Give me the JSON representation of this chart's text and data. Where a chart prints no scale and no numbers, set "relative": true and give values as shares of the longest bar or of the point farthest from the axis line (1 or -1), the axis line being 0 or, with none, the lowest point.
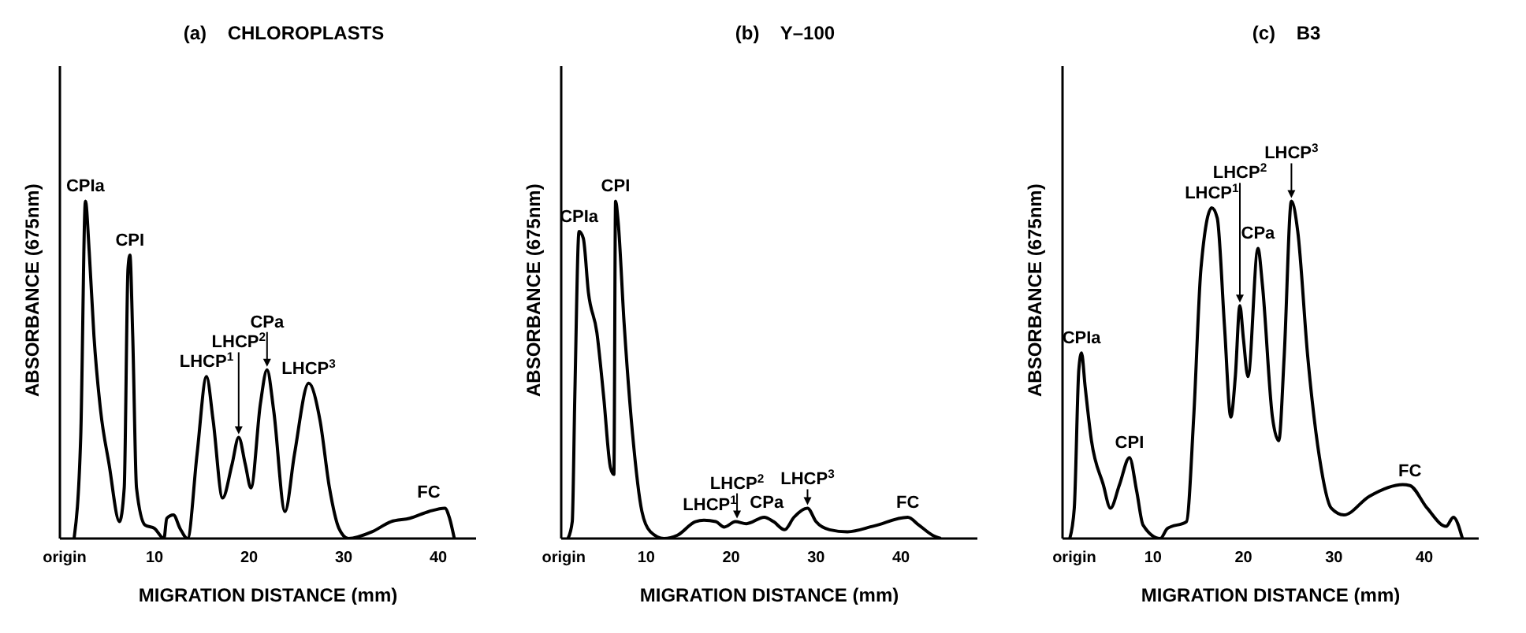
{
  "chart_data": [
    {
      "type": "line",
      "title": "(a)    CHLOROPLASTS",
      "xlabel": "MIGRATION DISTANCE (mm)",
      "ylabel": "ABSORBANCE (675nm)",
      "relative": true,
      "marker": "none",
      "tick_labels": "x",
      "xlim": [
        0,
        44
      ],
      "xticks": [
        {
          "value": 0.5,
          "label": "origin"
        },
        10,
        20,
        30,
        40
      ],
      "series": [
        {
          "color": "#000000",
          "x": [
            1.5,
            2.2,
            2.7,
            3.1,
            3.6,
            4.3,
            5.2,
            6.3,
            6.8,
            7.2,
            7.4,
            7.7,
            8.1,
            9,
            10,
            11,
            11.3,
            12,
            12.7,
            13.5,
            14.5,
            15.5,
            16.2,
            17.2,
            18.2,
            18.9,
            19.6,
            20.2,
            21.2,
            21.9,
            22.6,
            23.8,
            24.8,
            26.3,
            27.5,
            28.5,
            29.5,
            30.5,
            33,
            35,
            37,
            39,
            40.7,
            41.2,
            41.7
          ],
          "values": [
            0,
            0.3,
            1.0,
            0.85,
            0.6,
            0.38,
            0.22,
            0.05,
            0.15,
            0.8,
            0.84,
            0.6,
            0.15,
            0.04,
            0.03,
            0,
            0.06,
            0.07,
            0.03,
            0,
            0.25,
            0.48,
            0.35,
            0.12,
            0.22,
            0.3,
            0.22,
            0.15,
            0.4,
            0.5,
            0.38,
            0.08,
            0.25,
            0.46,
            0.35,
            0.15,
            0.03,
            0,
            0.02,
            0.05,
            0.06,
            0.08,
            0.09,
            0.06,
            0
          ]
        }
      ],
      "annotations": [
        {
          "text": "CPIa",
          "x": 2.7,
          "y": 1.0
        },
        {
          "text": "CPI",
          "x": 7.4,
          "y": 0.84
        },
        {
          "text": "LHCP$^{1}$",
          "x": 15.5,
          "y": 0.48
        },
        {
          "text": "LHCP$^{2}$",
          "x": 18.9,
          "y": 0.3
        },
        {
          "text": "CPa",
          "x": 21.9,
          "y": 0.5
        },
        {
          "text": "LHCP$^{3}$",
          "x": 26.3,
          "y": 0.46
        },
        {
          "text": "FC",
          "x": 39,
          "y": 0.08
        }
      ]
    },
    {
      "type": "line",
      "title": "(b)    Y–100",
      "xlabel": "MIGRATION DISTANCE (mm)",
      "ylabel": "ABSORBANCE (675nm)",
      "relative": true,
      "marker": "none",
      "tick_labels": "x",
      "xlim": [
        0,
        49
      ],
      "xticks": [
        {
          "value": 0.3,
          "label": "origin"
        },
        10,
        20,
        30,
        40
      ],
      "series": [
        {
          "color": "#000000",
          "x": [
            0.8,
            1.3,
            1.6,
            2.1,
            2.6,
            3.2,
            4.2,
            5,
            5.8,
            6.2,
            6.4,
            6.7,
            7.4,
            8.4,
            9.5,
            10.5,
            12.1,
            13.7,
            15.8,
            16.8,
            18.2,
            19.2,
            20.5,
            21.8,
            23.9,
            25,
            26.3,
            27.4,
            29,
            30,
            31.6,
            33.7,
            36.8,
            40.8,
            42.1,
            43.7,
            44.7
          ],
          "values": [
            0,
            0.05,
            0.42,
            0.91,
            0.89,
            0.73,
            0.61,
            0.42,
            0.21,
            0.19,
            1.0,
            0.94,
            0.64,
            0.31,
            0.08,
            0.02,
            0,
            0.01,
            0.05,
            0.054,
            0.05,
            0.034,
            0.05,
            0.044,
            0.063,
            0.05,
            0.026,
            0.063,
            0.09,
            0.05,
            0.026,
            0.02,
            0.037,
            0.063,
            0.04,
            0.01,
            0
          ]
        }
      ],
      "annotations": [
        {
          "text": "CPIa",
          "x": 2.1,
          "y": 0.91
        },
        {
          "text": "CPI",
          "x": 6.4,
          "y": 1.0
        },
        {
          "text": "LHCP$^{1}$",
          "x": 17.5,
          "y": 0.055
        },
        {
          "text": "LHCP$^{2}$",
          "x": 20.7,
          "y": 0.05
        },
        {
          "text": "CPa",
          "x": 24.2,
          "y": 0.063
        },
        {
          "text": "LHCP$^{3}$",
          "x": 29,
          "y": 0.09
        },
        {
          "text": "FC",
          "x": 40.8,
          "y": 0.063
        }
      ]
    },
    {
      "type": "line",
      "title": "(c)    B3",
      "xlabel": "MIGRATION DISTANCE (mm)",
      "ylabel": "ABSORBANCE (675nm)",
      "relative": true,
      "marker": "none",
      "tick_labels": "x",
      "xlim": [
        0,
        46
      ],
      "xticks": [
        {
          "value": 1.3,
          "label": "origin"
        },
        10,
        20,
        30,
        40
      ],
      "series": [
        {
          "color": "#000000",
          "x": [
            0.8,
            1.3,
            1.8,
            2.1,
            2.5,
            3.2,
            4.5,
            5.3,
            6.3,
            7.4,
            8.2,
            8.9,
            10.8,
            11.6,
            13.7,
            14.5,
            15.3,
            16.5,
            17.1,
            17.9,
            18.6,
            19.1,
            19.6,
            20,
            20.5,
            21.6,
            22.1,
            23.2,
            23.9,
            24.5,
            25.3,
            26,
            27.1,
            28.4,
            29.7,
            31.1,
            33.9,
            37.6,
            38.4,
            40.3,
            42.4,
            43.2,
            44.2
          ],
          "values": [
            0,
            0.09,
            0.5,
            0.55,
            0.45,
            0.29,
            0.16,
            0.09,
            0.16,
            0.24,
            0.14,
            0.04,
            0,
            0.03,
            0.05,
            0.36,
            0.8,
            0.98,
            0.95,
            0.63,
            0.36,
            0.48,
            0.69,
            0.59,
            0.48,
            0.86,
            0.75,
            0.36,
            0.29,
            0.54,
            1.0,
            0.91,
            0.54,
            0.24,
            0.09,
            0.07,
            0.125,
            0.16,
            0.157,
            0.09,
            0.036,
            0.063,
            0
          ]
        }
      ],
      "annotations": [
        {
          "text": "CPIa",
          "x": 2.1,
          "y": 0.55
        },
        {
          "text": "CPI",
          "x": 7.4,
          "y": 0.24
        },
        {
          "text": "LHCP$^{1}$",
          "x": 16.5,
          "y": 0.98
        },
        {
          "text": "LHCP$^{2}$",
          "x": 19.6,
          "y": 0.69
        },
        {
          "text": "CPa",
          "x": 21.6,
          "y": 0.86
        },
        {
          "text": "LHCP$^{3}$",
          "x": 25.3,
          "y": 1.0
        },
        {
          "text": "FC",
          "x": 38.4,
          "y": 0.157
        }
      ]
    }
  ]
}
